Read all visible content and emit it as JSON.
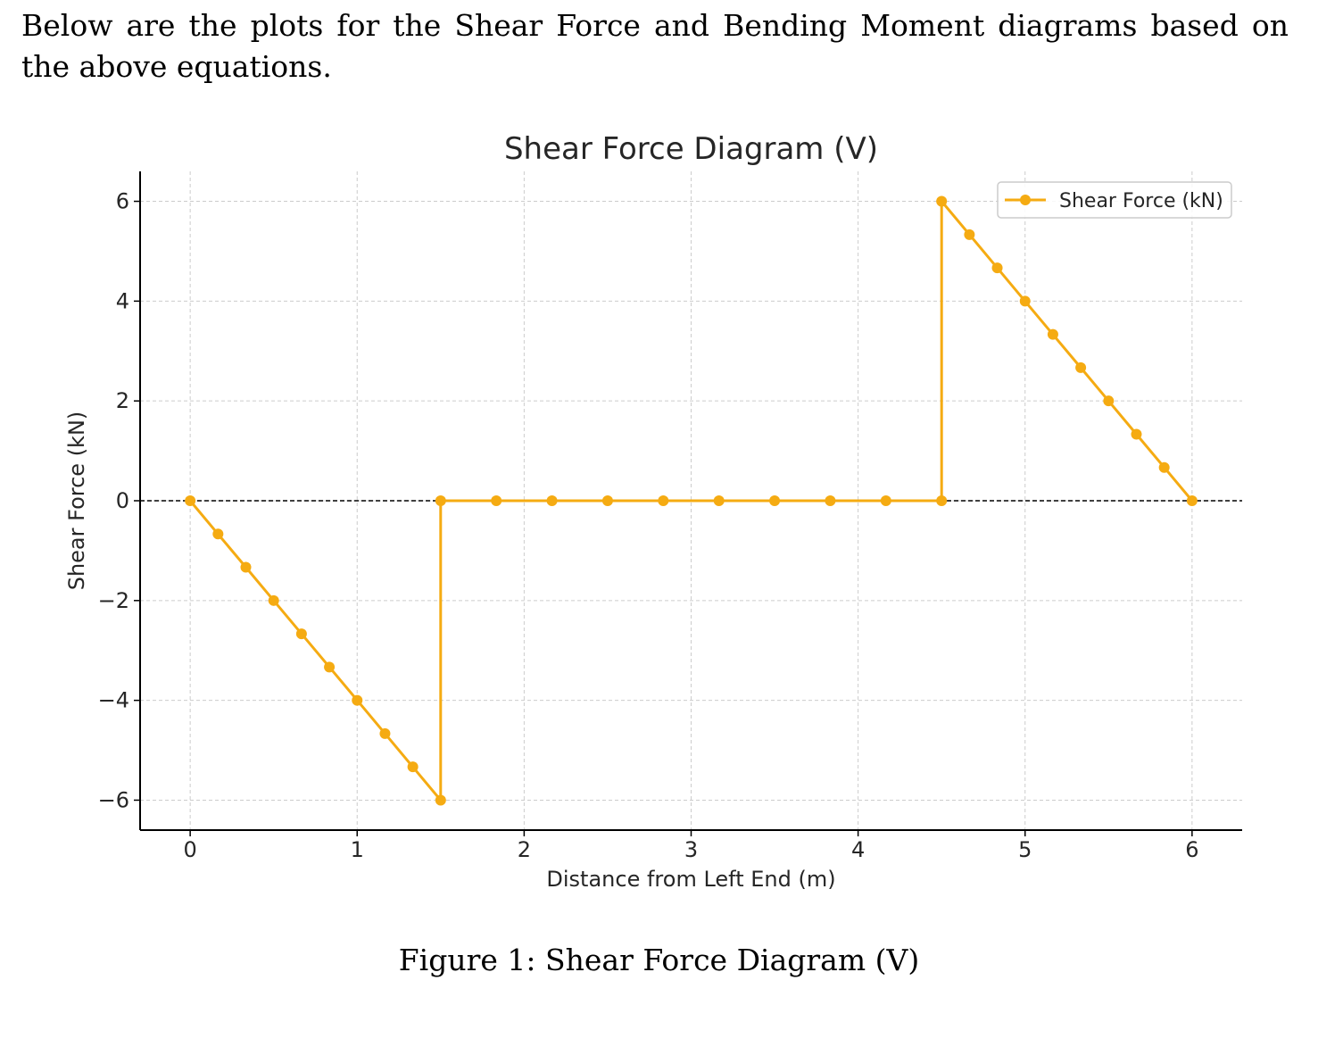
{
  "intro_text": "Below are the plots for the Shear Force and Bending Moment diagrams based on the above equations.",
  "caption": "Figure 1: Shear Force Diagram (V)",
  "chart_data": {
    "type": "line",
    "title": "Shear Force Diagram (V)",
    "xlabel": "Distance from Left End (m)",
    "ylabel": "Shear Force (kN)",
    "xlim": [
      -0.3,
      6.3
    ],
    "ylim": [
      -6.6,
      6.6
    ],
    "xticks": [
      0,
      1,
      2,
      3,
      4,
      5,
      6
    ],
    "xtick_labels": [
      "0",
      "1",
      "2",
      "3",
      "4",
      "5",
      "6"
    ],
    "yticks": [
      -6,
      -4,
      -2,
      0,
      2,
      4,
      6
    ],
    "ytick_labels": [
      "−6",
      "−4",
      "−2",
      "0",
      "2",
      "4",
      "6"
    ],
    "grid": true,
    "zero_line": true,
    "legend_position": "top-right",
    "colors": {
      "series": "#f5ab12",
      "zero_line": "#000000",
      "grid": "#cccccc",
      "axis": "#000000"
    },
    "series": [
      {
        "name": "Shear Force (kN)",
        "x": [
          0,
          0.1667,
          0.3333,
          0.5,
          0.6667,
          0.8333,
          1.0,
          1.1667,
          1.3333,
          1.5,
          1.5,
          1.8333,
          2.1667,
          2.5,
          2.8333,
          3.1667,
          3.5,
          3.8333,
          4.1667,
          4.5,
          4.5,
          4.6667,
          4.8333,
          5.0,
          5.1667,
          5.3333,
          5.5,
          5.6667,
          5.8333,
          6.0
        ],
        "y": [
          0,
          -0.667,
          -1.333,
          -2.0,
          -2.667,
          -3.333,
          -4.0,
          -4.667,
          -5.333,
          -6.0,
          0,
          0,
          0,
          0,
          0,
          0,
          0,
          0,
          0,
          0,
          6.0,
          5.333,
          4.667,
          4.0,
          3.333,
          2.667,
          2.0,
          1.333,
          0.667,
          0
        ]
      }
    ]
  }
}
